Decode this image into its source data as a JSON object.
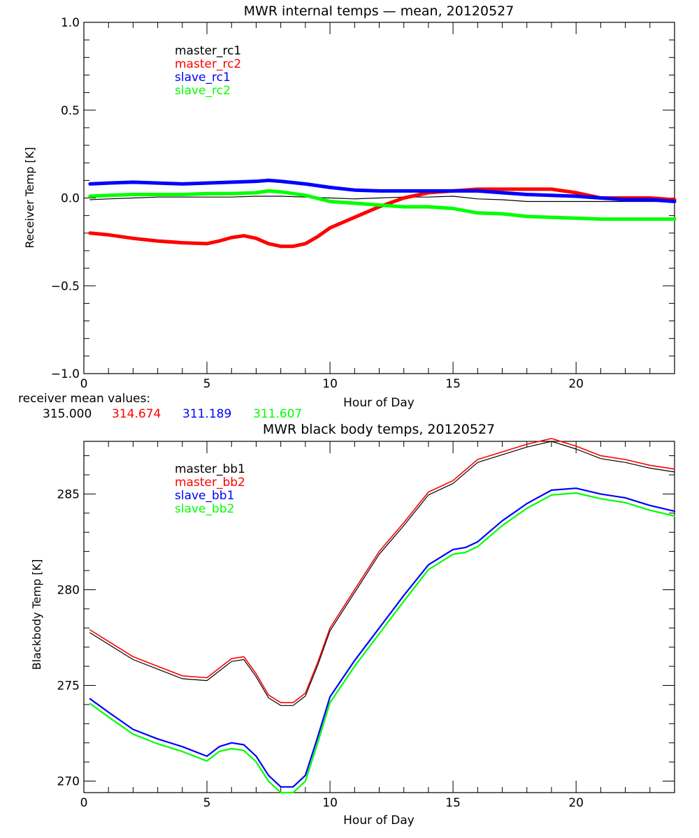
{
  "chart_data": [
    {
      "type": "line",
      "title": "MWR internal temps — mean, 20120527",
      "xlabel": "Hour of Day",
      "ylabel": "Receiver Temp [K]",
      "xlim": [
        0,
        24
      ],
      "ylim": [
        -1.0,
        1.0
      ],
      "xticks": [
        "0",
        "5",
        "10",
        "15",
        "20"
      ],
      "xtick_values": [
        0,
        5,
        10,
        15,
        20
      ],
      "yticks": [
        "−1.0",
        "−0.5",
        "0.0",
        "0.5",
        "1.0"
      ],
      "ytick_values": [
        -1.0,
        -0.5,
        0.0,
        0.5,
        1.0
      ],
      "legend_position": "upper-left-inside",
      "series": [
        {
          "name": "master_rc1",
          "color": "#000000",
          "x": [
            0.25,
            1,
            2,
            3,
            4,
            5,
            6,
            7,
            8,
            9,
            10,
            11,
            12,
            13,
            14,
            15,
            16,
            17,
            18,
            19,
            20,
            21,
            22,
            23,
            24
          ],
          "y": [
            -0.01,
            -0.005,
            0,
            0.005,
            0.005,
            0.005,
            0.005,
            0.01,
            0.01,
            0.005,
            0,
            -0.005,
            0,
            0.005,
            0.005,
            0.01,
            -0.005,
            -0.01,
            -0.02,
            -0.02,
            -0.02,
            -0.02,
            -0.02,
            -0.02,
            -0.02
          ]
        },
        {
          "name": "master_rc2",
          "color": "#ff0000",
          "x": [
            0.25,
            1,
            2,
            3,
            4,
            5,
            5.5,
            6,
            6.5,
            7,
            7.5,
            8,
            8.5,
            9,
            9.5,
            10,
            11,
            12,
            13,
            14,
            15,
            16,
            17,
            18,
            19,
            20,
            21,
            22,
            23,
            24
          ],
          "y": [
            -0.2,
            -0.21,
            -0.23,
            -0.245,
            -0.255,
            -0.26,
            -0.245,
            -0.225,
            -0.215,
            -0.23,
            -0.26,
            -0.275,
            -0.275,
            -0.26,
            -0.22,
            -0.17,
            -0.11,
            -0.05,
            0.0,
            0.03,
            0.04,
            0.05,
            0.05,
            0.05,
            0.05,
            0.03,
            0.0,
            0.0,
            0.0,
            -0.01
          ]
        },
        {
          "name": "slave_rc1",
          "color": "#0000ff",
          "x": [
            0.25,
            1,
            2,
            3,
            4,
            5,
            6,
            7,
            7.5,
            8,
            9,
            10,
            11,
            12,
            13,
            14,
            15,
            16,
            17,
            18,
            19,
            20,
            21,
            22,
            23,
            24
          ],
          "y": [
            0.08,
            0.085,
            0.09,
            0.085,
            0.08,
            0.085,
            0.09,
            0.095,
            0.1,
            0.095,
            0.08,
            0.06,
            0.045,
            0.04,
            0.04,
            0.04,
            0.04,
            0.04,
            0.03,
            0.02,
            0.015,
            0.01,
            0.0,
            -0.01,
            -0.01,
            -0.02
          ]
        },
        {
          "name": "slave_rc2",
          "color": "#00ff00",
          "x": [
            0.25,
            1,
            2,
            3,
            4,
            5,
            6,
            7,
            7.5,
            8,
            9,
            10,
            11,
            12,
            13,
            14,
            15,
            16,
            17,
            18,
            19,
            20,
            21,
            22,
            23,
            24
          ],
          "y": [
            0.01,
            0.015,
            0.02,
            0.02,
            0.02,
            0.025,
            0.025,
            0.03,
            0.04,
            0.035,
            0.015,
            -0.02,
            -0.03,
            -0.04,
            -0.05,
            -0.05,
            -0.06,
            -0.085,
            -0.09,
            -0.105,
            -0.11,
            -0.115,
            -0.12,
            -0.12,
            -0.12,
            -0.12
          ]
        }
      ]
    },
    {
      "type": "line",
      "title": "MWR black body temps, 20120527",
      "xlabel": "Hour of Day",
      "ylabel": "Blackbody Temp [K]",
      "xlim": [
        0,
        24
      ],
      "ylim": [
        269.4,
        287.75
      ],
      "xticks": [
        "0",
        "5",
        "10",
        "15",
        "20"
      ],
      "xtick_values": [
        0,
        5,
        10,
        15,
        20
      ],
      "yticks": [
        "270",
        "275",
        "280",
        "285"
      ],
      "ytick_values": [
        270,
        275,
        280,
        285
      ],
      "legend_position": "upper-left-inside",
      "series": [
        {
          "name": "master_bb1",
          "color": "#000000",
          "x": [
            0.25,
            1,
            2,
            3,
            4,
            5,
            5.5,
            6,
            6.5,
            7,
            7.5,
            8,
            8.5,
            9,
            9.5,
            10,
            11,
            12,
            13,
            14,
            15,
            16,
            17,
            18,
            19,
            20,
            21,
            22,
            23,
            24
          ],
          "y": [
            277.75,
            277.15,
            276.35,
            275.85,
            275.35,
            275.25,
            275.75,
            276.25,
            276.35,
            275.45,
            274.35,
            273.95,
            273.95,
            274.45,
            276.05,
            277.85,
            279.85,
            281.85,
            283.35,
            284.95,
            285.55,
            286.65,
            287.05,
            287.45,
            287.75,
            287.35,
            286.85,
            286.65,
            286.35,
            286.15
          ]
        },
        {
          "name": "master_bb2",
          "color": "#ff0000",
          "x": [
            0.25,
            1,
            2,
            3,
            4,
            5,
            5.5,
            6,
            6.5,
            7,
            7.5,
            8,
            8.5,
            9,
            9.5,
            10,
            11,
            12,
            13,
            14,
            15,
            16,
            17,
            18,
            19,
            20,
            21,
            22,
            23,
            24
          ],
          "y": [
            277.9,
            277.3,
            276.5,
            276.0,
            275.5,
            275.4,
            275.9,
            276.4,
            276.5,
            275.6,
            274.5,
            274.1,
            274.1,
            274.6,
            276.2,
            278.0,
            280.0,
            282.0,
            283.5,
            285.1,
            285.7,
            286.8,
            287.2,
            287.6,
            287.9,
            287.5,
            287.0,
            286.8,
            286.5,
            286.3
          ]
        },
        {
          "name": "slave_bb1",
          "color": "#0000ff",
          "x": [
            0.25,
            1,
            2,
            3,
            4,
            5,
            5.5,
            6,
            6.5,
            7,
            7.5,
            8,
            8.5,
            9,
            9.5,
            10,
            11,
            12,
            13,
            14,
            15,
            15.5,
            16,
            17,
            18,
            19,
            20,
            21,
            22,
            23,
            24
          ],
          "y": [
            274.3,
            273.6,
            272.7,
            272.2,
            271.8,
            271.3,
            271.8,
            272.0,
            271.9,
            271.3,
            270.3,
            269.7,
            269.7,
            270.3,
            272.3,
            274.4,
            276.3,
            278.0,
            279.7,
            281.3,
            282.1,
            282.2,
            282.5,
            283.6,
            284.5,
            285.2,
            285.3,
            285.0,
            284.8,
            284.4,
            284.1
          ]
        },
        {
          "name": "slave_bb2",
          "color": "#00ff00",
          "x": [
            0.25,
            1,
            2,
            3,
            4,
            5,
            5.5,
            6,
            6.5,
            7,
            7.5,
            8,
            8.5,
            9,
            9.5,
            10,
            11,
            12,
            13,
            14,
            15,
            15.5,
            16,
            17,
            18,
            19,
            20,
            21,
            22,
            23,
            24
          ],
          "y": [
            274.05,
            273.35,
            272.45,
            271.95,
            271.55,
            271.05,
            271.55,
            271.7,
            271.6,
            271.0,
            270.0,
            269.4,
            269.4,
            270.0,
            272.0,
            274.1,
            276.0,
            277.7,
            279.4,
            281.05,
            281.85,
            281.95,
            282.25,
            283.35,
            284.25,
            284.95,
            285.05,
            284.75,
            284.55,
            284.15,
            283.85
          ]
        }
      ]
    }
  ],
  "annotation": {
    "label": "receiver mean values:",
    "values": [
      {
        "text": "315.000",
        "color": "#000000"
      },
      {
        "text": "314.674",
        "color": "#ff0000"
      },
      {
        "text": "311.189",
        "color": "#0000ff"
      },
      {
        "text": "311.607",
        "color": "#00ff00"
      }
    ]
  }
}
